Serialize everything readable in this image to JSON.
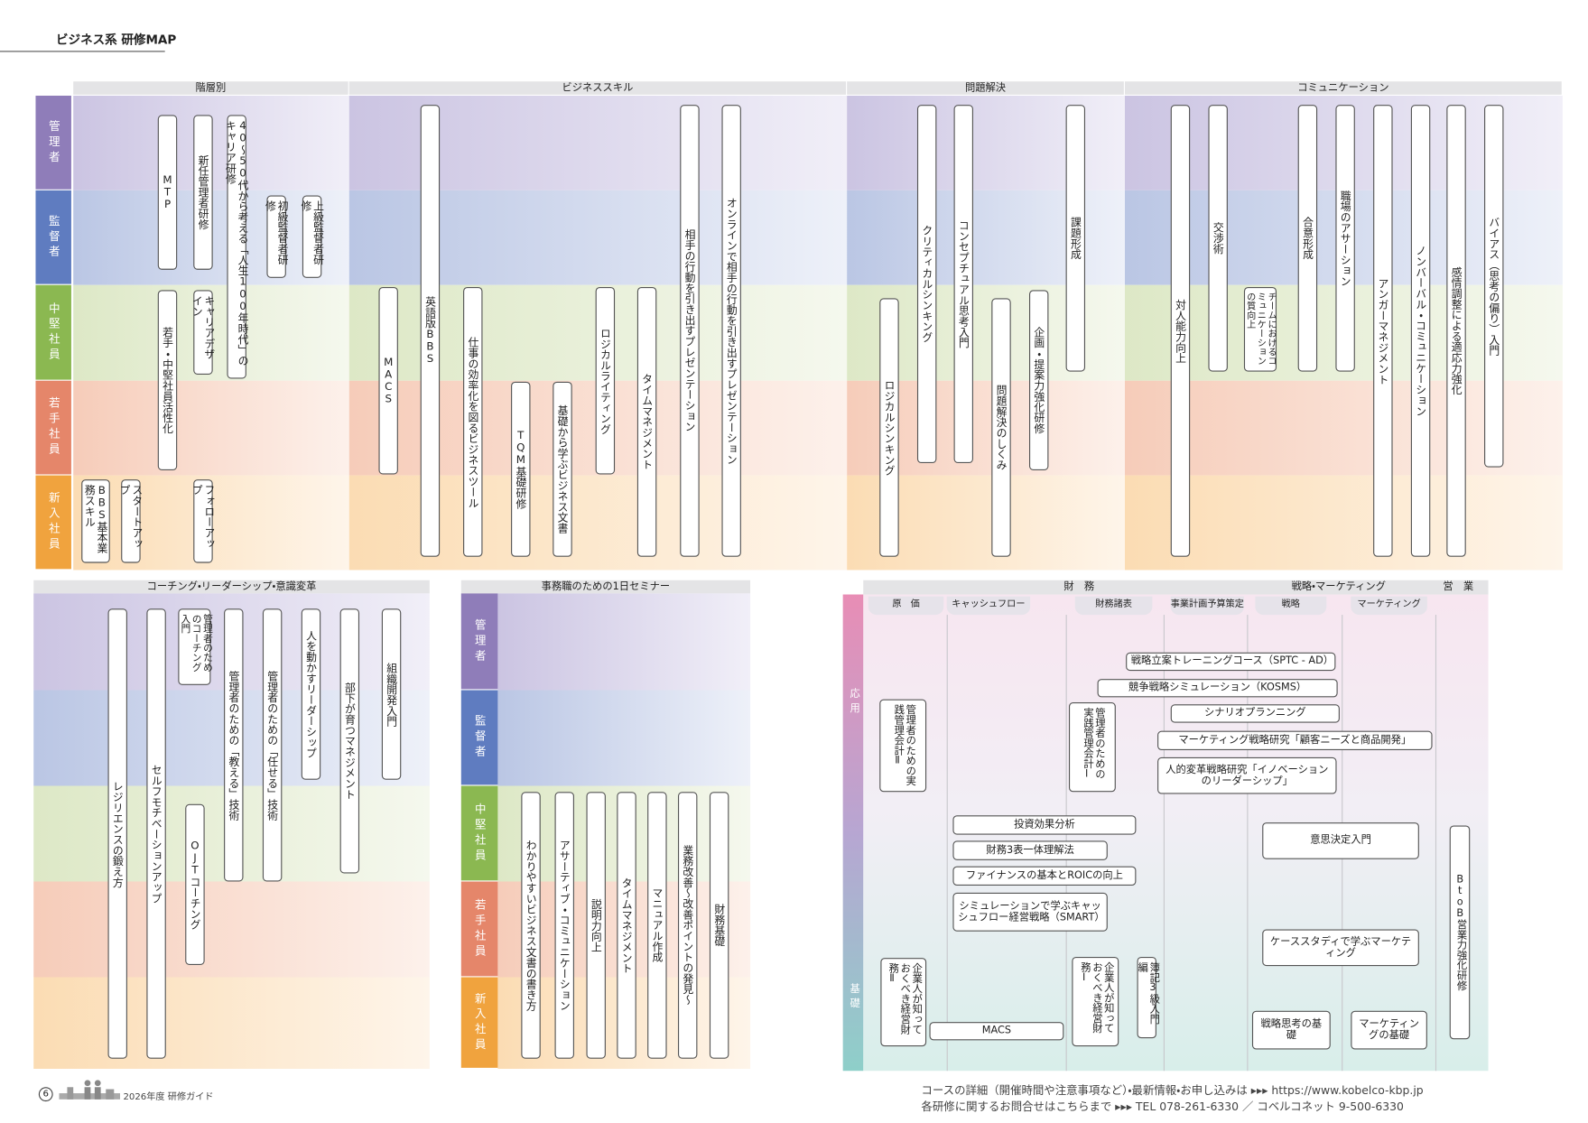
{
  "header": {
    "title": "ビジネス系 研修MAP"
  },
  "top_map": {
    "columns": [
      "階層別",
      "ビジネススキル",
      "問題解決",
      "コミュニケーション"
    ],
    "rows": [
      "管理者",
      "監督者",
      "中堅社員",
      "若手社員",
      "新入社員"
    ],
    "courses": [
      "MTP",
      "新任管理者研修",
      "40～50代から考える「人生100年時代」のキャリア研修",
      "初級監督者研修",
      "上級監督者研修",
      "若手・中堅社員活性化",
      "キャリアデザイン",
      "BBS基本業務スキル",
      "スタートアップ",
      "フォローアップ",
      "MACS",
      "英語版BBS",
      "仕事の効率化を図るビジネスツール",
      "TQM基礎研修",
      "基礎から学ぶビジネス文書",
      "ロジカルライティング",
      "タイムマネジメント",
      "相手の行動を引き出すプレゼンテーション",
      "オンラインで相手の行動を引き出すプレゼンテーション",
      "ロジカルシンキング",
      "クリティカルシンキング",
      "コンセプチュアル思考入門",
      "問題解決のしくみ",
      "企画・提案力強化研修",
      "課題形成",
      "対人能力向上",
      "交渉術",
      "チームにおけるコミュニケーションの質向上",
      "合意形成",
      "職場のアサーション",
      "アンガーマネジメント",
      "ノンバーバル・コミュニケーション",
      "感情調整による適応力強化",
      "バイアス（思考の偏り）入門"
    ]
  },
  "coaching": {
    "title": "コーチング・リーダーシップ・意識変革",
    "courses": [
      "レジリエンスの鍛え方",
      "セルフモチベーションアップ",
      "管理者のためのコーチング入門",
      "管理者のための「教える」技術",
      "管理者のための「任せる」技術",
      "OJTコーチング",
      "人を動かすリーダーシップ",
      "部下が育つマネジメント",
      "組織開発入門"
    ]
  },
  "seminar": {
    "title": "事務職のための1日セミナー",
    "rows": [
      "管理者",
      "監督者",
      "中堅社員",
      "若手社員",
      "新入社員"
    ],
    "courses": [
      "わかりやすいビジネス文書の書き方",
      "アサーティブ・コミュニケーション",
      "説明力向上",
      "タイムマネジメント",
      "マニュアル作成",
      "業務改善～改善ポイントの発見～",
      "財務基礎"
    ]
  },
  "finance": {
    "groups": [
      "財　務",
      "戦略・マーケティング",
      "営　業"
    ],
    "subgroups": [
      "原　価",
      "キャッシュフロー",
      "財務諸表",
      "事業計画予算策定",
      "戦略",
      "マーケティング"
    ],
    "levels": [
      "応用",
      "基礎"
    ],
    "courses": [
      "戦略立案トレーニングコース（SPTC - AD）",
      "競争戦略シミュレーション（KOSMS）",
      "シナリオプランニング",
      "マーケティング戦略研究「顧客ニーズと商品開発」",
      "人的変革戦略研究「イノベーションのリーダーシップ」",
      "管理者のための実践管理会計Ⅱ",
      "管理者のための実践管理会計Ⅰ",
      "投資効果分析",
      "財務3表一体理解法",
      "ファイナンスの基本とROICの向上",
      "シミュレーションで学ぶキャッシュフロー経営戦略（SMART）",
      "意思決定入門",
      "ケーススタディで学ぶマーケティング",
      "企業人が知っておくべき経営財務Ⅱ",
      "企業人が知っておくべき経営財務Ⅰ",
      "簿記3級入門編",
      "MACS",
      "戦略思考の基礎",
      "マーケティングの基礎",
      "BtoB営業力強化研修"
    ]
  },
  "footer": {
    "page": "6",
    "guide": "2026年度 研修ガイド",
    "info_text": "コースの詳細（開催時間や注意事項など）・最新情報・お申し込みは",
    "url": "https://www.kobelco-kbp.jp",
    "contact_text": "各研修に関するお問合せはこちらまで",
    "contact": "TEL 078-261-6330 ／ コベルコネット 9-500-6330"
  }
}
